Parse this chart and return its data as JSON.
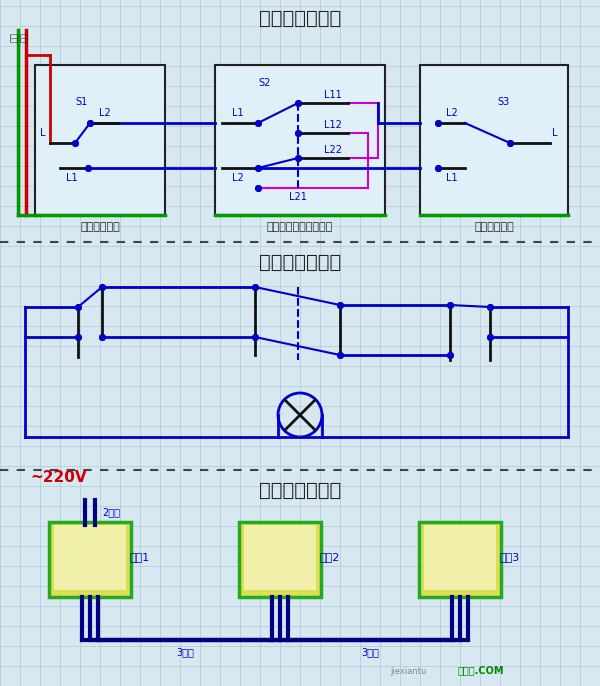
{
  "title1": "三控开关接线图",
  "title2": "三控开关原理图",
  "title3": "三控开关布线图",
  "bg_color": "#d8e8f0",
  "grid_color": "#b0c8d8",
  "panel_bg": "#dff0f8",
  "box_border": "#222222",
  "blue": "#0000cc",
  "green": "#009900",
  "red": "#cc0000",
  "magenta": "#cc00cc",
  "dark_blue": "#000080",
  "label_color": "#0000cc",
  "volt_color": "#cc0000",
  "switch_label": [
    "单开双控开关",
    "中途开关（三控开关）",
    "单开双控开关"
  ],
  "wire_label1": "2根线",
  "wire_label2": "3根线",
  "wire_label3": "3根线",
  "sw_labels": [
    "开关1",
    "开关2",
    "开关3"
  ],
  "s1_label": "S1",
  "s2_label": "S2",
  "s3_label": "S3",
  "volt_label": "~220V",
  "watermark": "接线图.COM",
  "watermark2": "jiexiantu"
}
